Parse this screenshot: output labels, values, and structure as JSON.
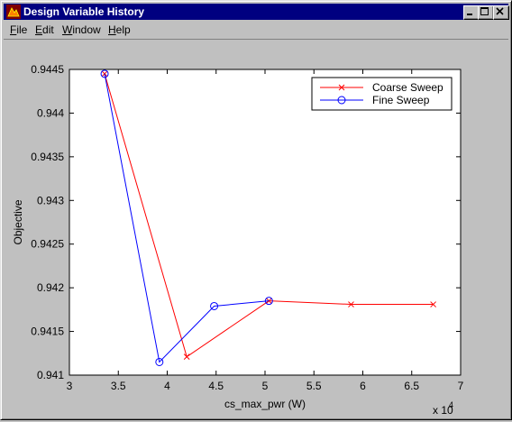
{
  "window": {
    "title": "Design Variable History",
    "controls": {
      "minimize": "minimize",
      "maximize": "maximize",
      "close": "close"
    }
  },
  "menu": [
    {
      "first": "F",
      "rest": "ile"
    },
    {
      "first": "E",
      "rest": "dit"
    },
    {
      "first": "W",
      "rest": "indow"
    },
    {
      "first": "H",
      "rest": "elp"
    }
  ],
  "colors": {
    "coarse": "#ff0000",
    "fine": "#0000ff",
    "title_bar": "#000080",
    "background": "#c0c0c0"
  },
  "chart_data": {
    "type": "line",
    "xlabel": "cs_max_pwr (W)",
    "ylabel": "Objective",
    "x_exponent_label": "x 10",
    "x_exponent_power": "4",
    "xlim": [
      30000,
      70000
    ],
    "ylim": [
      0.941,
      0.9445
    ],
    "x_ticks": [
      30000,
      35000,
      40000,
      45000,
      50000,
      55000,
      60000,
      65000,
      70000
    ],
    "x_tick_labels": [
      "3",
      "3.5",
      "4",
      "4.5",
      "5",
      "5.5",
      "6",
      "6.5",
      "7"
    ],
    "y_ticks": [
      0.941,
      0.9415,
      0.942,
      0.9425,
      0.943,
      0.9435,
      0.944,
      0.9445
    ],
    "y_tick_labels": [
      "0.941",
      "0.9415",
      "0.942",
      "0.9425",
      "0.943",
      "0.9435",
      "0.944",
      "0.9445"
    ],
    "grid": false,
    "legend_position": "top-right",
    "series": [
      {
        "name": "Coarse Sweep",
        "color": "#ff0000",
        "marker": "x",
        "x": [
          33600,
          42000,
          50400,
          58800,
          67200
        ],
        "y": [
          0.94445,
          0.94121,
          0.94185,
          0.94181,
          0.94181
        ]
      },
      {
        "name": "Fine Sweep",
        "color": "#0000ff",
        "marker": "o",
        "x": [
          33600,
          39200,
          44800,
          50400
        ],
        "y": [
          0.94445,
          0.94115,
          0.94179,
          0.94185
        ]
      }
    ]
  }
}
